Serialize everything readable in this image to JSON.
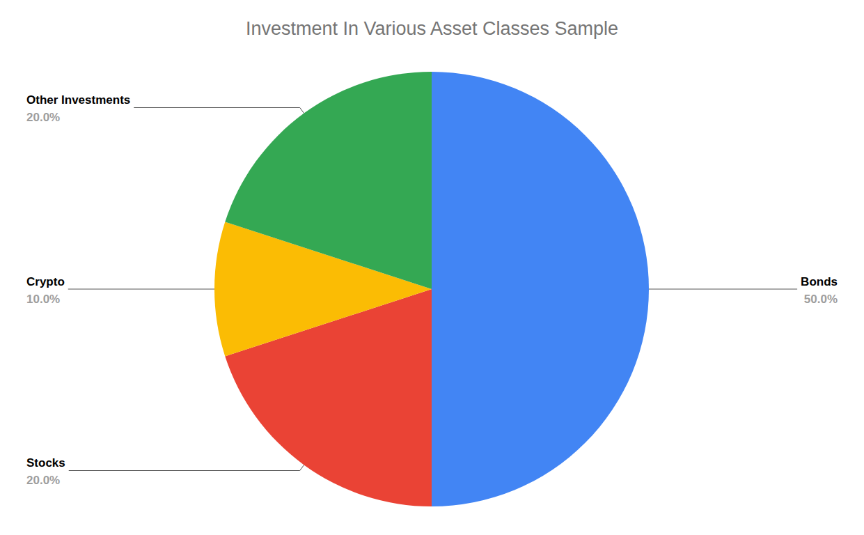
{
  "chart_data": {
    "type": "pie",
    "title": "Investment In Various Asset Classes Sample",
    "categories": [
      "Bonds",
      "Stocks",
      "Crypto",
      "Other Investments"
    ],
    "values": [
      50,
      20,
      10,
      20
    ],
    "value_labels": [
      "50.0%",
      "20.0%",
      "10.0%",
      "20.0%"
    ],
    "colors": [
      "#4285f4",
      "#ea4335",
      "#fbbc04",
      "#34a853"
    ],
    "data_labels": true
  }
}
